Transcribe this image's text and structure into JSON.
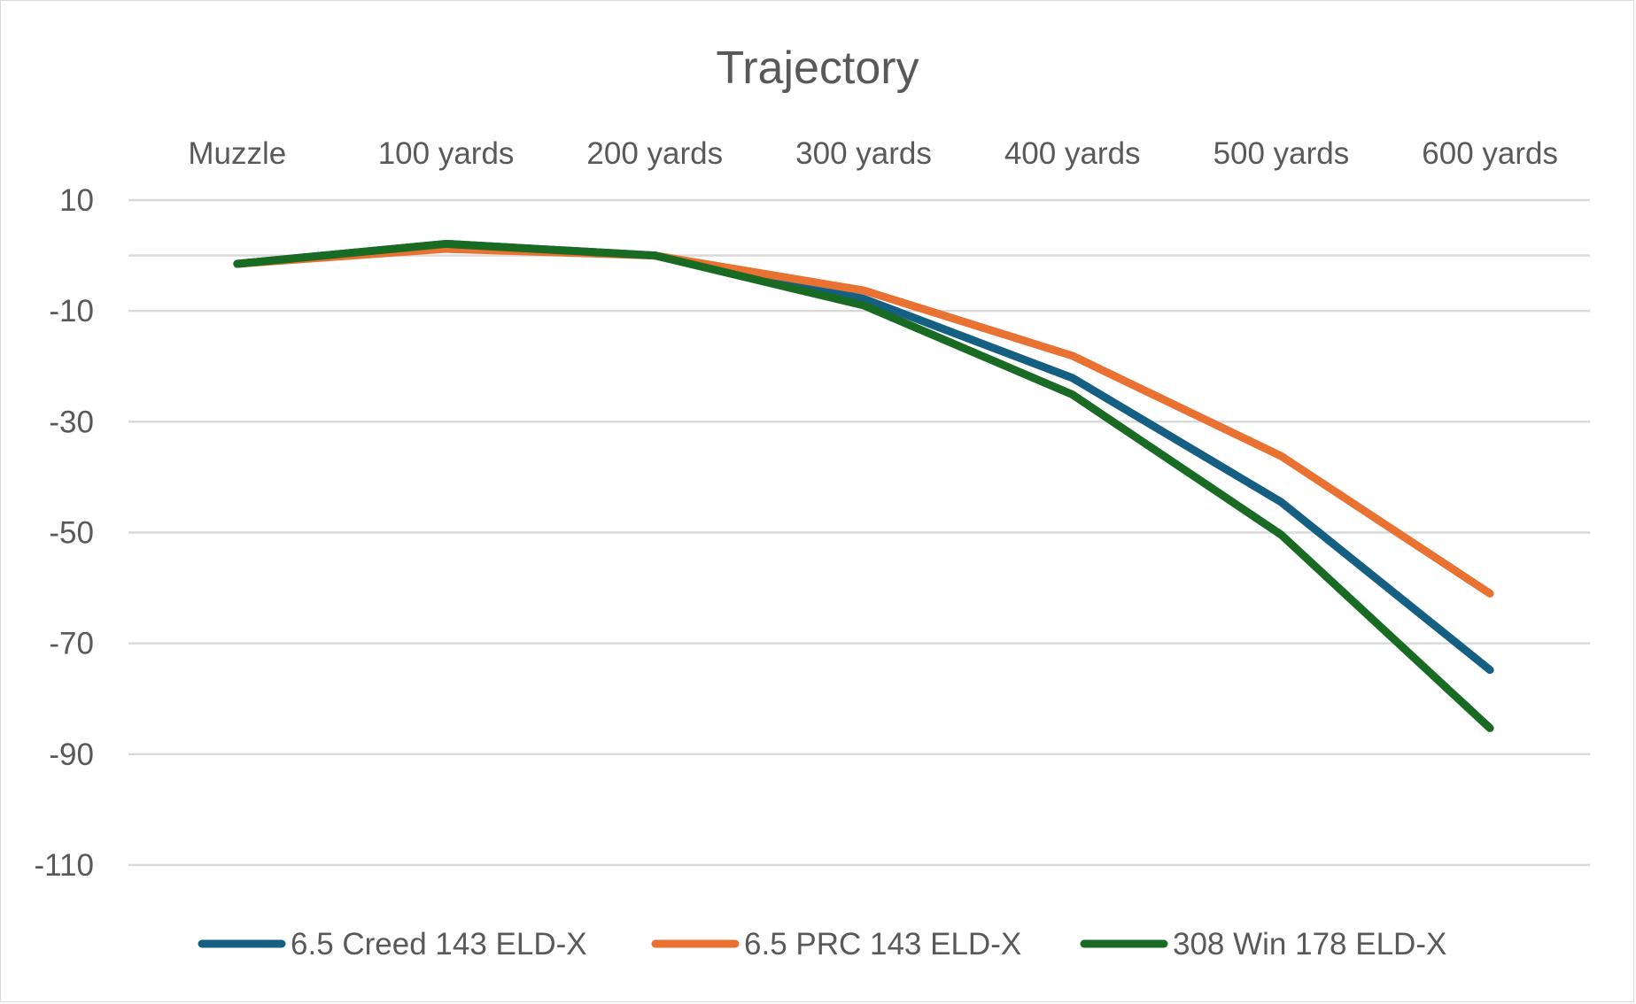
{
  "chart_data": {
    "type": "line",
    "title": "Trajectory",
    "xlabel": "",
    "ylabel": "",
    "categories": [
      "Muzzle",
      "100 yards",
      "200 yards",
      "300 yards",
      "400 yards",
      "500 yards",
      "600 yards"
    ],
    "ylim": [
      -110,
      10
    ],
    "yticks": [
      10,
      -10,
      -30,
      -50,
      -70,
      -90,
      -110
    ],
    "gridlines": [
      10,
      0,
      -10,
      -30,
      -50,
      -70,
      -90,
      -110
    ],
    "grid": true,
    "category_axis_position": "top",
    "legend_position": "bottom",
    "series": [
      {
        "name": "6.5 Creed 143 ELD-X",
        "color": "#156082",
        "values": [
          -1.5,
          2.1,
          0,
          -7.8,
          -22.1,
          -44.5,
          -74.8
        ]
      },
      {
        "name": "6.5 PRC 143 ELD-X",
        "color": "#E97132",
        "values": [
          -1.5,
          1.2,
          0,
          -6.3,
          -18.1,
          -36.2,
          -61.0
        ]
      },
      {
        "name": "308 Win 178 ELD-X",
        "color": "#196B24",
        "values": [
          -1.5,
          2.1,
          0,
          -9.0,
          -25.1,
          -50.4,
          -85.3
        ]
      }
    ]
  }
}
